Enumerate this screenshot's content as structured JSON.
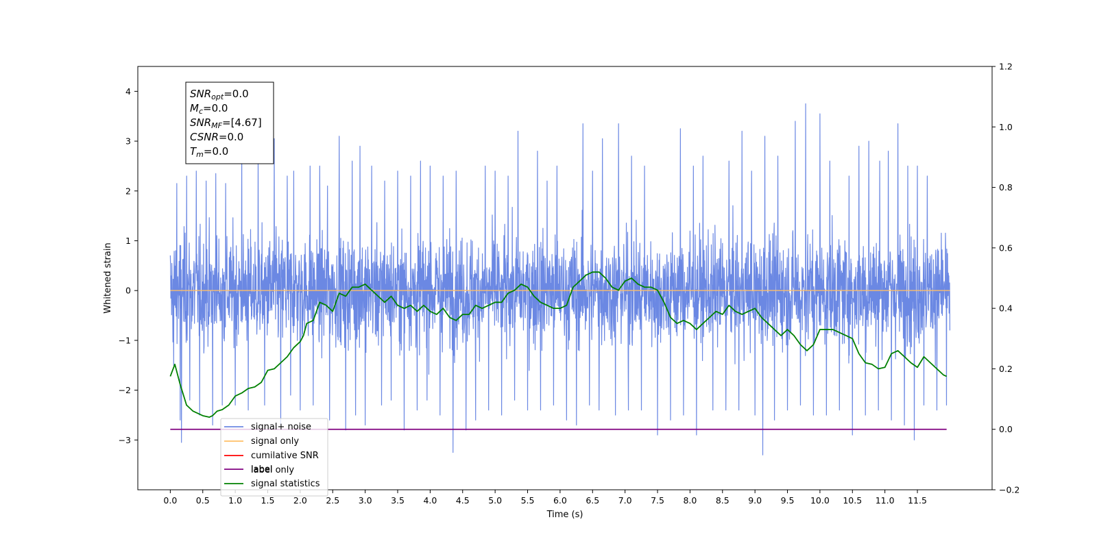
{
  "chart_data": {
    "type": "line",
    "xlabel": "Time (s)",
    "ylabel": "Whitened strain",
    "xlim": [
      -0.5,
      12.65
    ],
    "ylim": [
      -4.0,
      4.5
    ],
    "y2lim": [
      -0.2,
      1.2
    ],
    "grid": false,
    "legend_position": "lower-left",
    "x_ticks": [
      "0.0",
      "0.5",
      "1.0",
      "1.5",
      "2.0",
      "2.5",
      "3.0",
      "3.5",
      "4.0",
      "4.5",
      "5.0",
      "5.5",
      "6.0",
      "6.5",
      "7.0",
      "7.5",
      "8.0",
      "8.5",
      "9.0",
      "9.5",
      "10.0",
      "10.5",
      "11.0",
      "11.5"
    ],
    "y_ticks": [
      "−3",
      "−2",
      "−1",
      "0",
      "1",
      "2",
      "3",
      "4"
    ],
    "y2_ticks": [
      "−0.2",
      "0.0",
      "0.2",
      "0.4",
      "0.6",
      "0.8",
      "1.0",
      "1.2"
    ],
    "annotation": {
      "lines": [
        {
          "sym": "SNR",
          "sub": "opt",
          "value": "=0.0"
        },
        {
          "sym": "M",
          "sub": "c",
          "value": "=0.0"
        },
        {
          "sym": "SNR",
          "sub": "MF",
          "value": "=[4.67]"
        },
        {
          "sym": "CSNR",
          "sub": "",
          "value": "=0.0"
        },
        {
          "sym": "T",
          "sub": "m",
          "value": "=0.0"
        }
      ]
    },
    "legend": [
      {
        "name": "signal+ noise",
        "color": "#6b88e3"
      },
      {
        "name": "signal only",
        "color": "#ffbf66"
      },
      {
        "name": "cumilative SNR",
        "color": "#ff0000"
      },
      {
        "name": "label",
        "color": "#800080"
      },
      {
        "name": "label only",
        "color": "#dddddd"
      },
      {
        "name": "signal statistics",
        "color": "#008000"
      }
    ],
    "series": [
      {
        "name": "signal+ noise",
        "axis": "left",
        "color": "#6b88e3",
        "description_values": {
          "x_range": [
            0.0,
            12.0
          ],
          "band_low": -1.5,
          "band_high": 1.4,
          "max": 3.75,
          "min": -3.3
        },
        "peaks": [
          [
            0.1,
            2.15
          ],
          [
            0.25,
            2.3
          ],
          [
            0.4,
            2.4
          ],
          [
            0.55,
            2.2
          ],
          [
            0.7,
            2.35
          ],
          [
            0.85,
            2.15
          ],
          [
            1.0,
            2.6
          ],
          [
            1.1,
            3.0
          ],
          [
            1.2,
            2.5
          ],
          [
            1.35,
            2.8
          ],
          [
            1.6,
            3.05
          ],
          [
            1.8,
            2.3
          ],
          [
            1.9,
            2.4
          ],
          [
            2.0,
            2.35
          ],
          [
            2.15,
            2.5
          ],
          [
            2.3,
            2.5
          ],
          [
            2.42,
            2.1
          ],
          [
            2.6,
            3.1
          ],
          [
            2.8,
            2.6
          ],
          [
            2.92,
            2.9
          ],
          [
            3.1,
            2.5
          ],
          [
            3.3,
            2.2
          ],
          [
            3.5,
            2.4
          ],
          [
            3.7,
            2.3
          ],
          [
            3.85,
            2.6
          ],
          [
            4.0,
            2.5
          ],
          [
            4.2,
            2.3
          ],
          [
            4.4,
            2.4
          ],
          [
            4.55,
            2.1
          ],
          [
            4.7,
            2.3
          ],
          [
            4.85,
            2.5
          ],
          [
            5.0,
            2.4
          ],
          [
            5.2,
            2.3
          ],
          [
            5.35,
            3.2
          ],
          [
            5.5,
            2.5
          ],
          [
            5.65,
            2.8
          ],
          [
            5.8,
            2.2
          ],
          [
            5.95,
            2.5
          ],
          [
            6.1,
            2.7
          ],
          [
            6.35,
            3.35
          ],
          [
            6.5,
            2.4
          ],
          [
            6.65,
            3.05
          ],
          [
            6.9,
            3.35
          ],
          [
            7.1,
            2.7
          ],
          [
            7.3,
            2.5
          ],
          [
            7.5,
            2.6
          ],
          [
            7.7,
            2.2
          ],
          [
            7.85,
            3.25
          ],
          [
            8.05,
            2.5
          ],
          [
            8.2,
            2.7
          ],
          [
            8.35,
            3.2
          ],
          [
            8.6,
            2.6
          ],
          [
            8.8,
            3.2
          ],
          [
            8.95,
            2.4
          ],
          [
            9.15,
            3.1
          ],
          [
            9.35,
            2.7
          ],
          [
            9.5,
            2.6
          ],
          [
            9.62,
            3.4
          ],
          [
            9.78,
            3.75
          ],
          [
            9.9,
            3.0
          ],
          [
            10.0,
            3.55
          ],
          [
            10.15,
            2.6
          ],
          [
            10.3,
            2.8
          ],
          [
            10.45,
            2.3
          ],
          [
            10.6,
            2.9
          ],
          [
            10.75,
            3.0
          ],
          [
            10.92,
            2.6
          ],
          [
            11.05,
            2.8
          ],
          [
            11.2,
            3.35
          ],
          [
            11.35,
            2.5
          ],
          [
            11.5,
            2.5
          ],
          [
            11.65,
            2.3
          ],
          [
            11.8,
            2.1
          ],
          [
            11.95,
            2.15
          ]
        ],
        "troughs": [
          [
            0.05,
            -1.5
          ],
          [
            0.15,
            -2.6
          ],
          [
            0.17,
            -3.05
          ],
          [
            0.3,
            -2.2
          ],
          [
            0.45,
            -2.5
          ],
          [
            0.65,
            -2.7
          ],
          [
            0.8,
            -2.3
          ],
          [
            1.0,
            -2.3
          ],
          [
            1.2,
            -2.4
          ],
          [
            1.45,
            -2.3
          ],
          [
            1.7,
            -2.7
          ],
          [
            1.85,
            -2.1
          ],
          [
            2.0,
            -2.4
          ],
          [
            2.2,
            -2.3
          ],
          [
            2.45,
            -2.6
          ],
          [
            2.7,
            -2.8
          ],
          [
            2.85,
            -2.5
          ],
          [
            3.0,
            -2.7
          ],
          [
            3.25,
            -2.3
          ],
          [
            3.4,
            -2.2
          ],
          [
            3.6,
            -2.8
          ],
          [
            3.8,
            -2.4
          ],
          [
            3.95,
            -2.2
          ],
          [
            4.15,
            -2.5
          ],
          [
            4.35,
            -3.25
          ],
          [
            4.55,
            -2.8
          ],
          [
            4.7,
            -2.6
          ],
          [
            4.9,
            -2.4
          ],
          [
            5.1,
            -2.5
          ],
          [
            5.3,
            -2.2
          ],
          [
            5.5,
            -2.4
          ],
          [
            5.7,
            -2.4
          ],
          [
            5.9,
            -2.3
          ],
          [
            6.1,
            -2.6
          ],
          [
            6.25,
            -2.7
          ],
          [
            6.45,
            -2.3
          ],
          [
            6.6,
            -2.4
          ],
          [
            6.85,
            -2.5
          ],
          [
            7.05,
            -2.4
          ],
          [
            7.25,
            -2.4
          ],
          [
            7.5,
            -2.9
          ],
          [
            7.7,
            -2.6
          ],
          [
            7.9,
            -2.5
          ],
          [
            8.1,
            -2.9
          ],
          [
            8.35,
            -2.4
          ],
          [
            8.55,
            -2.4
          ],
          [
            8.75,
            -2.4
          ],
          [
            9.0,
            -2.5
          ],
          [
            9.12,
            -3.3
          ],
          [
            9.3,
            -2.6
          ],
          [
            9.5,
            -2.4
          ],
          [
            9.7,
            -2.3
          ],
          [
            9.9,
            -2.5
          ],
          [
            10.1,
            -2.5
          ],
          [
            10.3,
            -2.4
          ],
          [
            10.5,
            -2.9
          ],
          [
            10.7,
            -2.5
          ],
          [
            10.9,
            -2.4
          ],
          [
            11.1,
            -2.6
          ],
          [
            11.3,
            -2.7
          ],
          [
            11.45,
            -3.0
          ],
          [
            11.6,
            -2.3
          ],
          [
            11.8,
            -2.4
          ],
          [
            11.95,
            -2.3
          ]
        ]
      },
      {
        "name": "signal only",
        "axis": "left",
        "color": "#ffbf66",
        "x": [
          0.0,
          12.0
        ],
        "y": [
          0.0,
          0.0
        ]
      },
      {
        "name": "label",
        "axis": "right",
        "color": "#800080",
        "x": [
          0.0,
          11.95
        ],
        "y": [
          0.0,
          0.0
        ]
      },
      {
        "name": "signal statistics",
        "axis": "right",
        "color": "#008000",
        "x": [
          0.0,
          0.07,
          0.15,
          0.25,
          0.35,
          0.5,
          0.6,
          0.65,
          0.72,
          0.8,
          0.9,
          1.0,
          1.1,
          1.2,
          1.3,
          1.4,
          1.5,
          1.6,
          1.7,
          1.8,
          1.9,
          2.0,
          2.05,
          2.1,
          2.2,
          2.3,
          2.4,
          2.5,
          2.6,
          2.7,
          2.8,
          2.9,
          3.0,
          3.1,
          3.2,
          3.3,
          3.4,
          3.5,
          3.6,
          3.7,
          3.8,
          3.9,
          4.0,
          4.1,
          4.2,
          4.3,
          4.4,
          4.5,
          4.6,
          4.7,
          4.8,
          4.9,
          5.0,
          5.1,
          5.2,
          5.3,
          5.4,
          5.5,
          5.6,
          5.7,
          5.8,
          5.9,
          6.0,
          6.1,
          6.2,
          6.3,
          6.4,
          6.5,
          6.6,
          6.7,
          6.8,
          6.9,
          7.0,
          7.1,
          7.2,
          7.3,
          7.4,
          7.5,
          7.6,
          7.7,
          7.8,
          7.9,
          8.0,
          8.1,
          8.2,
          8.3,
          8.4,
          8.5,
          8.6,
          8.7,
          8.8,
          8.9,
          9.0,
          9.1,
          9.2,
          9.3,
          9.4,
          9.5,
          9.6,
          9.7,
          9.8,
          9.9,
          10.0,
          10.1,
          10.2,
          10.3,
          10.4,
          10.5,
          10.6,
          10.7,
          10.8,
          10.9,
          11.0,
          11.1,
          11.2,
          11.3,
          11.4,
          11.5,
          11.6,
          11.7,
          11.8,
          11.9,
          11.95
        ],
        "y": [
          0.175,
          0.215,
          0.15,
          0.08,
          0.06,
          0.045,
          0.04,
          0.045,
          0.06,
          0.065,
          0.08,
          0.11,
          0.12,
          0.135,
          0.14,
          0.155,
          0.195,
          0.2,
          0.22,
          0.24,
          0.27,
          0.29,
          0.31,
          0.35,
          0.36,
          0.42,
          0.41,
          0.39,
          0.45,
          0.44,
          0.47,
          0.47,
          0.48,
          0.46,
          0.44,
          0.42,
          0.44,
          0.41,
          0.4,
          0.41,
          0.39,
          0.41,
          0.39,
          0.38,
          0.4,
          0.37,
          0.36,
          0.38,
          0.38,
          0.41,
          0.4,
          0.41,
          0.42,
          0.42,
          0.45,
          0.46,
          0.48,
          0.47,
          0.44,
          0.42,
          0.41,
          0.4,
          0.4,
          0.41,
          0.47,
          0.49,
          0.51,
          0.52,
          0.52,
          0.5,
          0.47,
          0.46,
          0.49,
          0.5,
          0.48,
          0.47,
          0.47,
          0.46,
          0.42,
          0.37,
          0.35,
          0.36,
          0.35,
          0.33,
          0.35,
          0.37,
          0.39,
          0.38,
          0.41,
          0.39,
          0.38,
          0.39,
          0.4,
          0.37,
          0.35,
          0.33,
          0.31,
          0.33,
          0.31,
          0.28,
          0.26,
          0.28,
          0.33,
          0.33,
          0.33,
          0.32,
          0.31,
          0.3,
          0.25,
          0.22,
          0.215,
          0.2,
          0.205,
          0.25,
          0.26,
          0.24,
          0.22,
          0.205,
          0.24,
          0.22,
          0.2,
          0.18,
          0.175
        ]
      }
    ]
  }
}
